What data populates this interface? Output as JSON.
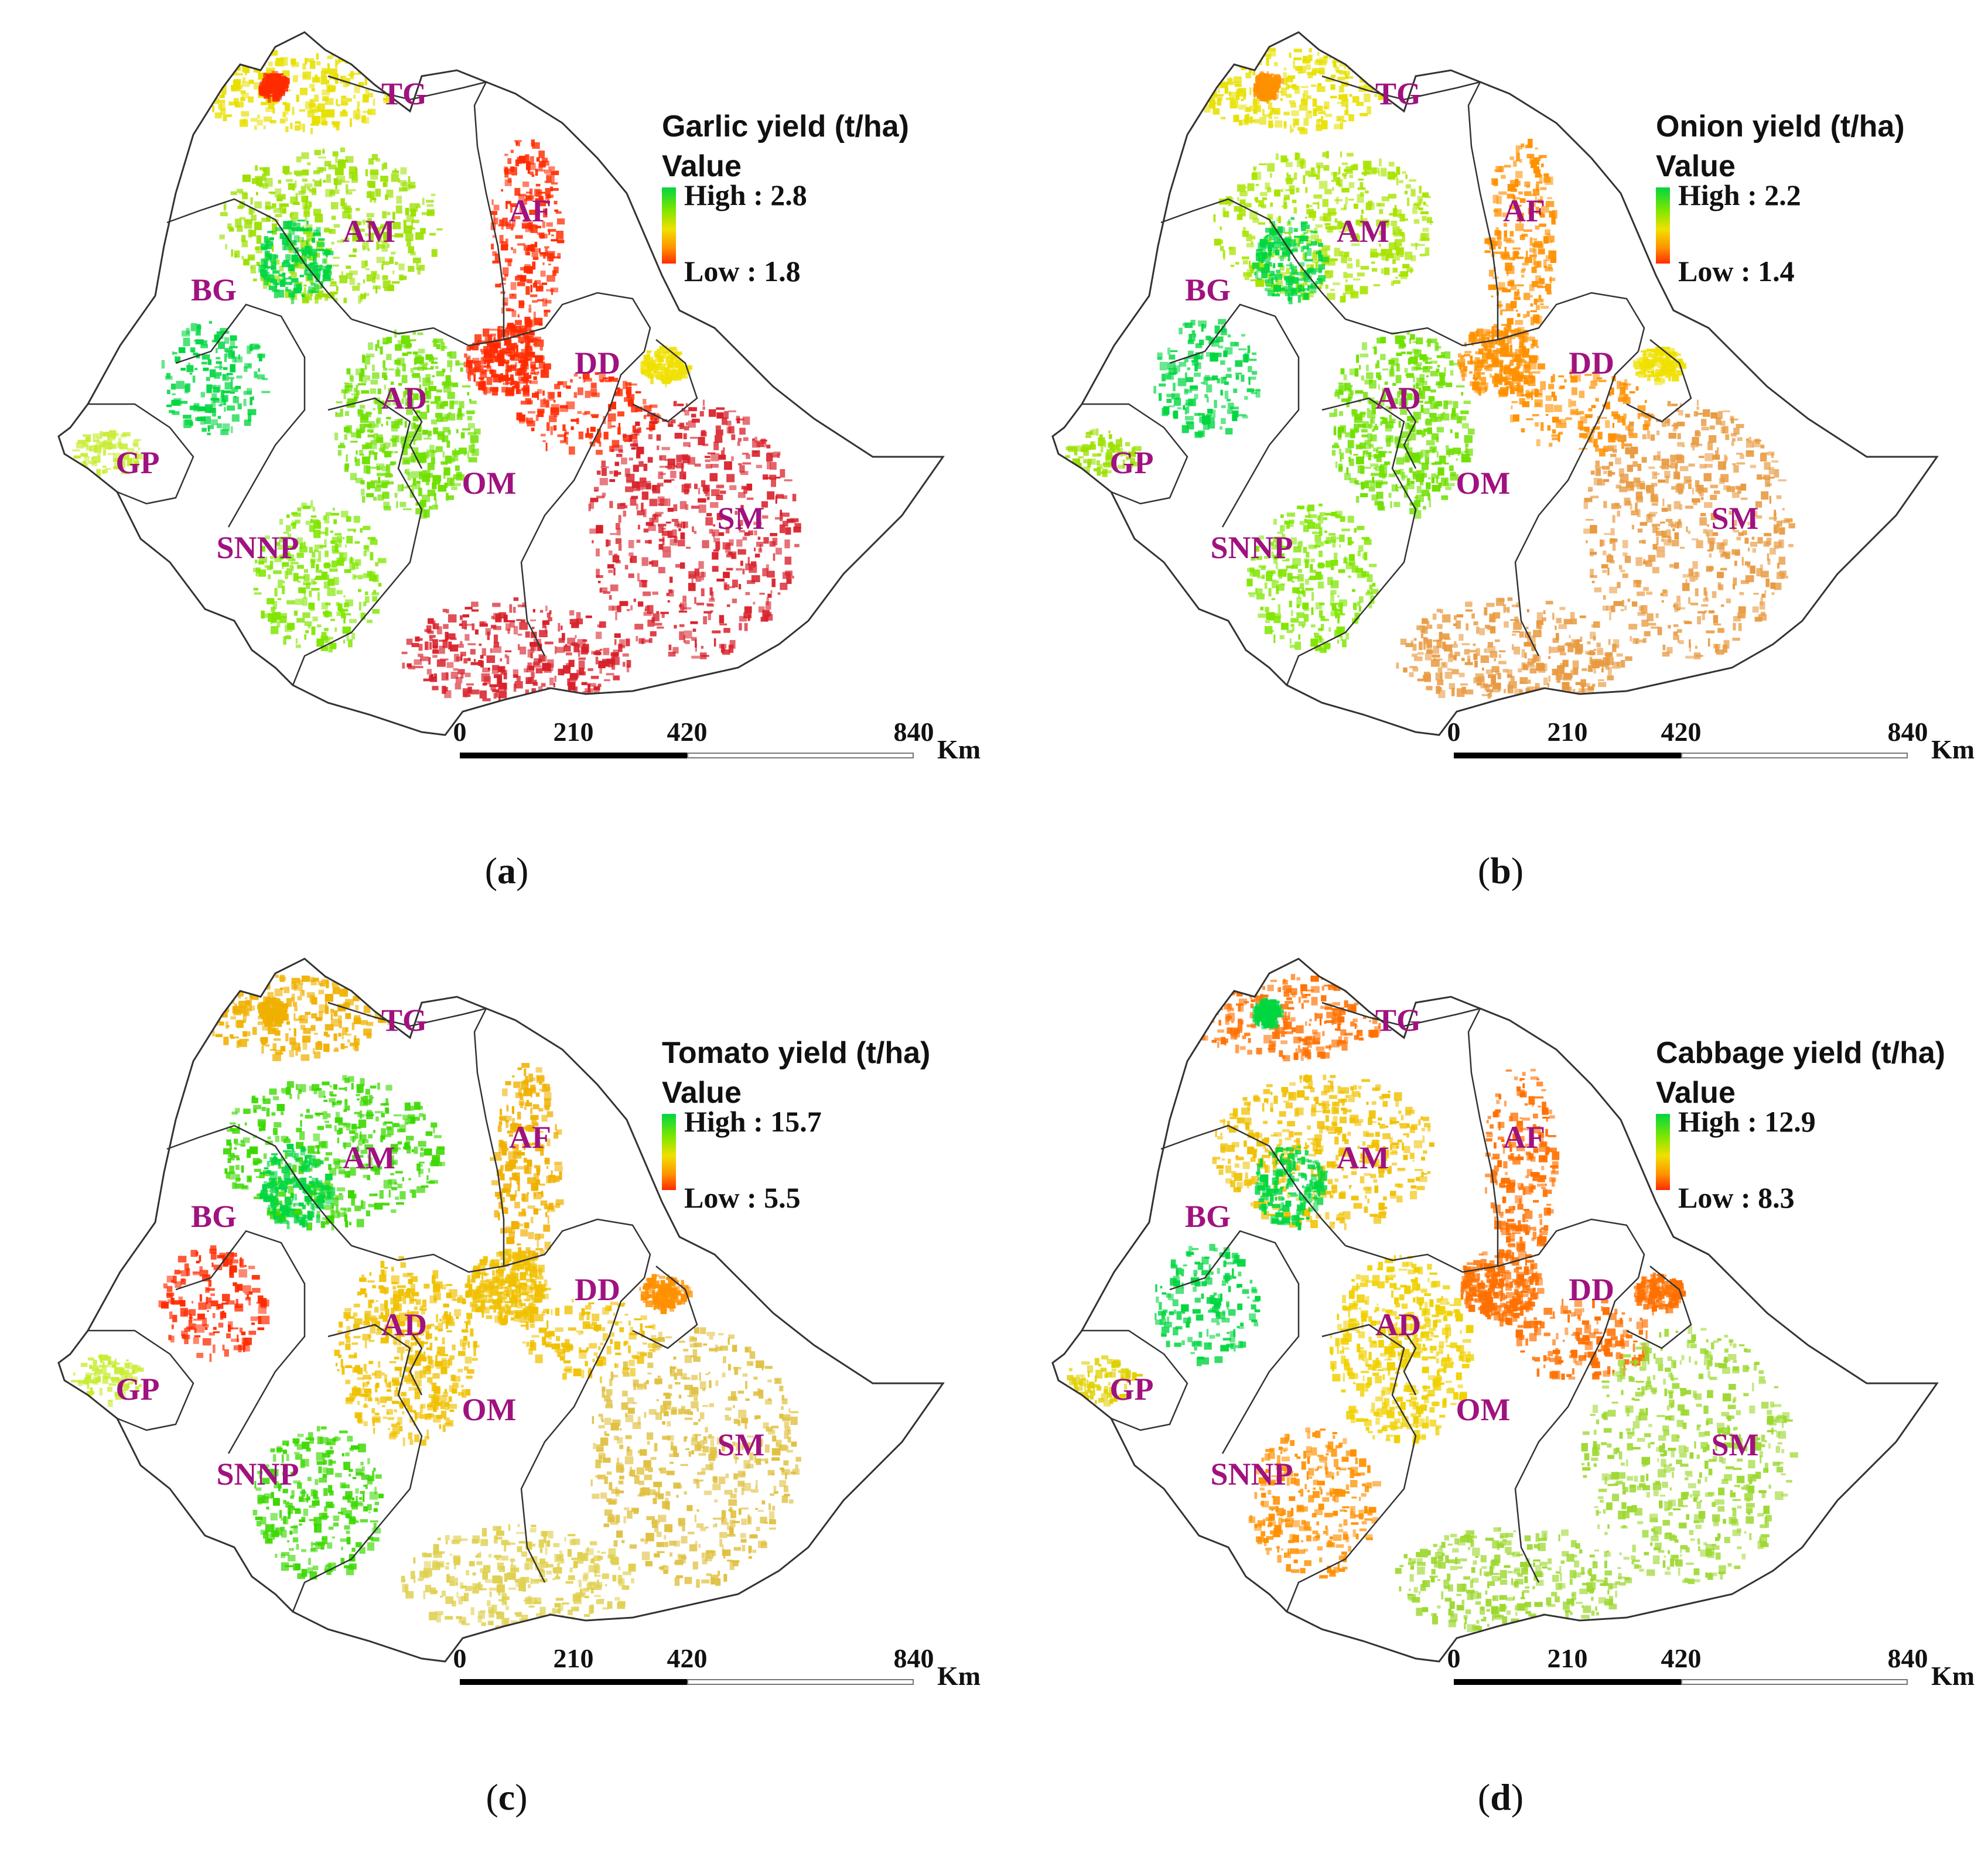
{
  "scale": {
    "ticks": [
      "0",
      "210",
      "420",
      "840"
    ],
    "unit": "Km"
  },
  "regions": [
    "TG",
    "AF",
    "AM",
    "BG",
    "AD",
    "DD",
    "GP",
    "OM",
    "SNNP",
    "SM"
  ],
  "colors": {
    "high": "#00d640",
    "mid_green": "#7fe600",
    "yellow": "#f0e000",
    "orange": "#ff9000",
    "low": "#ff2a00",
    "region_label": "#a0127f",
    "border": "#333333"
  },
  "panels": [
    {
      "id": "a",
      "legend": {
        "title": "Garlic yield (t/ha)",
        "subtitle": "Value",
        "high": "High : 2.8",
        "low": "Low : 1.8"
      },
      "caption": "a",
      "zone_colors": {
        "north": "#e8e000",
        "tigray_west": "#ff2a00",
        "afar": "#ff2a00",
        "amhara": "#9be000",
        "amhara_west": "#00d640",
        "benishangul": "#00d640",
        "addis": "#ff2a00",
        "oromia_center": "#6fe000",
        "oromia_east": "#ff2a00",
        "snnp": "#7fe600",
        "gambela": "#c7ec30",
        "somali": "#d8202a",
        "dire_dawa": "#f0e000",
        "south": "#d8202a"
      }
    },
    {
      "id": "b",
      "legend": {
        "title": "Onion yield (t/ha)",
        "subtitle": "Value",
        "high": "High : 2.2",
        "low": "Low : 1.4"
      },
      "caption": "b",
      "zone_colors": {
        "north": "#e8e000",
        "tigray_west": "#ff9000",
        "afar": "#ff9000",
        "amhara": "#a8e400",
        "amhara_west": "#00d640",
        "benishangul": "#00d640",
        "addis": "#ff9000",
        "oromia_center": "#6fe000",
        "oromia_east": "#ff9000",
        "snnp": "#7fe600",
        "gambela": "#9be000",
        "somali": "#e89a40",
        "dire_dawa": "#f0e000",
        "south": "#e89a40"
      }
    },
    {
      "id": "c",
      "legend": {
        "title": "Tomato yield (t/ha)",
        "subtitle": "Value",
        "high": "High : 15.7",
        "low": "Low : 5.5"
      },
      "caption": "c",
      "zone_colors": {
        "north": "#f0b000",
        "tigray_west": "#f0b000",
        "afar": "#f0b000",
        "amhara": "#3ad800",
        "amhara_west": "#00d640",
        "benishangul": "#ff2a00",
        "addis": "#f0c000",
        "oromia_center": "#f0c000",
        "oromia_east": "#f0c000",
        "snnp": "#3ad800",
        "gambela": "#c7ec30",
        "somali": "#e0c040",
        "dire_dawa": "#ff9000",
        "south": "#e0d050"
      }
    },
    {
      "id": "d",
      "legend": {
        "title": "Cabbage yield (t/ha)",
        "subtitle": "Value",
        "high": "High : 12.9",
        "low": "Low : 8.3"
      },
      "caption": "d",
      "zone_colors": {
        "north": "#ff7000",
        "tigray_west": "#00d640",
        "afar": "#ff7000",
        "amhara": "#f0c000",
        "amhara_west": "#00d640",
        "benishangul": "#00d640",
        "addis": "#ff7000",
        "oromia_center": "#f0d000",
        "oromia_east": "#ff7000",
        "snnp": "#ff9000",
        "gambela": "#e0d000",
        "somali": "#9cd830",
        "dire_dawa": "#ff7000",
        "south": "#9cd830"
      }
    }
  ]
}
